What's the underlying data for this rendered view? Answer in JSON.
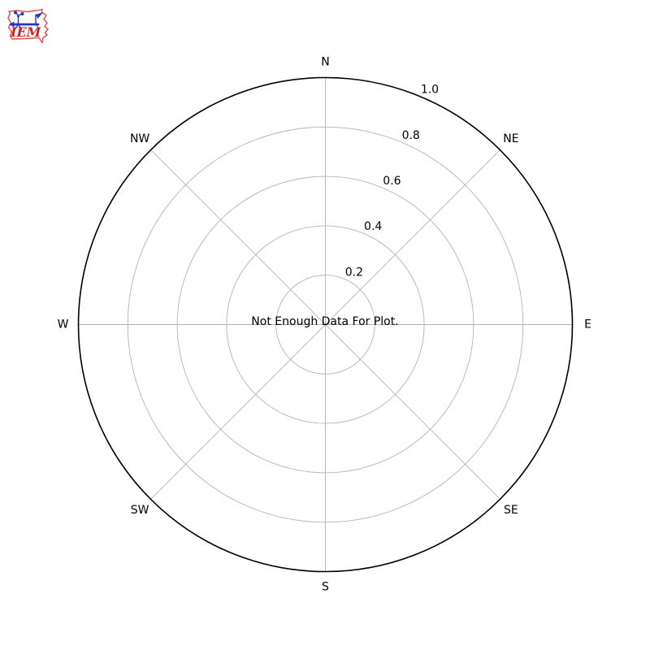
{
  "page": {
    "background_color": "#ffffff"
  },
  "logo": {
    "text": "IEM",
    "description": "iowa-state-outline-with-weather-station",
    "outline_color": "#e24c4c",
    "instrument_color": "#2635bd",
    "text_color": "#cc2222"
  },
  "chart_data": {
    "type": "polar",
    "subtype": "windrose",
    "title": "",
    "annotation": "Not Enough Data For Plot.",
    "directions": [
      "N",
      "NE",
      "E",
      "SE",
      "S",
      "SW",
      "W",
      "NW"
    ],
    "radial_ticks": [
      0.2,
      0.4,
      0.6,
      0.8,
      1.0
    ],
    "radial_tick_labels": [
      "0.2",
      "0.4",
      "0.6",
      "0.8",
      "1.0"
    ],
    "rlim": [
      0,
      1.0
    ],
    "rlabel_angle_deg": 22.5,
    "series": [],
    "grid": true,
    "legend": null,
    "grid_color": "#b3b3b3",
    "spine_color": "#000000",
    "text_color": "#000000"
  }
}
